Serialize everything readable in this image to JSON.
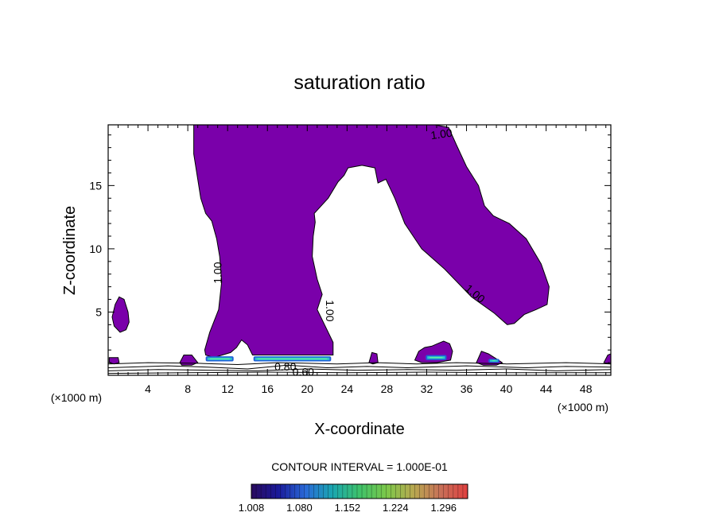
{
  "chart_data": {
    "type": "heatmap",
    "title": "saturation ratio",
    "xlabel": "X-coordinate",
    "ylabel": "Z-coordinate",
    "x_units": "(×1000 m)",
    "z_units": "(×1000 m)",
    "xlim": [
      0,
      50.5
    ],
    "ylim": [
      0,
      19.8
    ],
    "x_ticks": [
      4,
      8,
      12,
      16,
      20,
      24,
      28,
      32,
      36,
      40,
      44,
      48
    ],
    "y_ticks": [
      5,
      10,
      15
    ],
    "contour_interval_label": "CONTOUR INTERVAL = 1.000E-01",
    "contour_labels": [
      {
        "text": "1.00",
        "x": 33.5,
        "z": 19.0,
        "angle": -8
      },
      {
        "text": "1.00",
        "x": 11.1,
        "z": 8.1,
        "angle": -90
      },
      {
        "text": "1.00",
        "x": 22.2,
        "z": 5.1,
        "angle": 90
      },
      {
        "text": "1.00",
        "x": 36.8,
        "z": 6.4,
        "angle": 40
      },
      {
        "text": "0.80",
        "x": 17.8,
        "z": 0.6,
        "angle": 0
      },
      {
        "text": "0.60",
        "x": 19.6,
        "z": 0.2,
        "angle": 0
      }
    ],
    "colorbar": {
      "ticks": [
        "1.008",
        "1.080",
        "1.152",
        "1.224",
        "1.296"
      ],
      "min": 1.008,
      "max": 1.332,
      "stops": [
        "#2a0a5e",
        "#1a1a9a",
        "#2a6ad8",
        "#1aa6b0",
        "#3ec26a",
        "#7cc84a",
        "#b8a850",
        "#c87058",
        "#e04040"
      ]
    },
    "fill_color": "#7a00aa",
    "low_level_colors": [
      "#1e60d8",
      "#30c8c8",
      "#60f0a0"
    ],
    "shaded_regions": [
      {
        "name": "main-plume",
        "level": ">1.00",
        "outline": [
          [
            8.6,
            19.8
          ],
          [
            32.8,
            19.8
          ],
          [
            34.2,
            19.6
          ],
          [
            35.0,
            18.2
          ],
          [
            36.0,
            16.5
          ],
          [
            37.2,
            15.0
          ],
          [
            37.8,
            13.4
          ],
          [
            38.7,
            12.6
          ],
          [
            40.3,
            12.0
          ],
          [
            42.0,
            10.8
          ],
          [
            43.5,
            8.8
          ],
          [
            44.3,
            7.0
          ],
          [
            44.1,
            5.6
          ],
          [
            43.0,
            5.2
          ],
          [
            41.8,
            4.8
          ],
          [
            40.8,
            4.1
          ],
          [
            40.1,
            4.0
          ],
          [
            38.8,
            4.9
          ],
          [
            36.5,
            6.2
          ],
          [
            33.8,
            8.4
          ],
          [
            31.5,
            10.0
          ],
          [
            29.8,
            12.0
          ],
          [
            28.8,
            14.0
          ],
          [
            27.9,
            15.5
          ],
          [
            27.1,
            15.2
          ],
          [
            26.8,
            16.4
          ],
          [
            25.5,
            16.6
          ],
          [
            24.1,
            16.4
          ],
          [
            23.7,
            15.8
          ],
          [
            23.1,
            15.3
          ],
          [
            22.1,
            14.0
          ],
          [
            20.7,
            12.8
          ],
          [
            20.8,
            12.1
          ],
          [
            20.6,
            11.0
          ],
          [
            20.5,
            9.4
          ],
          [
            21.0,
            7.6
          ],
          [
            21.5,
            6.4
          ],
          [
            21.0,
            5.2
          ],
          [
            22.6,
            2.6
          ],
          [
            22.6,
            1.6
          ],
          [
            14.5,
            1.6
          ],
          [
            14.0,
            2.4
          ],
          [
            13.4,
            2.8
          ],
          [
            12.9,
            2.2
          ],
          [
            12.3,
            1.8
          ],
          [
            10.6,
            1.4
          ],
          [
            9.8,
            1.6
          ],
          [
            9.7,
            2.0
          ],
          [
            10.2,
            3.4
          ],
          [
            11.1,
            5.2
          ],
          [
            11.4,
            7.4
          ],
          [
            11.2,
            9.4
          ],
          [
            10.9,
            10.8
          ],
          [
            10.4,
            12.2
          ],
          [
            9.8,
            12.8
          ],
          [
            9.3,
            14.0
          ],
          [
            8.9,
            16.0
          ],
          [
            8.6,
            17.5
          ],
          [
            8.6,
            19.8
          ]
        ]
      },
      {
        "name": "left-blob",
        "level": ">1.00",
        "outline": [
          [
            0.4,
            4.6
          ],
          [
            0.7,
            5.6
          ],
          [
            1.1,
            6.2
          ],
          [
            1.6,
            6.0
          ],
          [
            2.0,
            5.0
          ],
          [
            2.1,
            4.2
          ],
          [
            1.8,
            3.6
          ],
          [
            1.2,
            3.4
          ],
          [
            0.6,
            3.9
          ],
          [
            0.4,
            4.6
          ]
        ]
      },
      {
        "name": "blob-31-35",
        "level": ">1.00",
        "outline": [
          [
            30.8,
            1.2
          ],
          [
            31.2,
            1.9
          ],
          [
            31.8,
            2.2
          ],
          [
            32.5,
            2.3
          ],
          [
            33.1,
            2.5
          ],
          [
            33.7,
            2.7
          ],
          [
            34.3,
            2.5
          ],
          [
            34.6,
            1.9
          ],
          [
            34.4,
            1.2
          ],
          [
            33.0,
            1.0
          ],
          [
            31.5,
            1.0
          ],
          [
            30.8,
            1.2
          ]
        ]
      },
      {
        "name": "blob-37-40",
        "level": ">1.00",
        "outline": [
          [
            37.0,
            1.0
          ],
          [
            37.5,
            1.9
          ],
          [
            38.2,
            1.7
          ],
          [
            39.0,
            1.3
          ],
          [
            39.6,
            1.0
          ],
          [
            39.0,
            0.8
          ],
          [
            37.7,
            0.8
          ],
          [
            37.0,
            1.0
          ]
        ]
      },
      {
        "name": "blob-8",
        "level": ">1.00",
        "outline": [
          [
            7.2,
            1.0
          ],
          [
            7.6,
            1.6
          ],
          [
            8.4,
            1.6
          ],
          [
            9.0,
            1.0
          ],
          [
            8.4,
            0.8
          ],
          [
            7.4,
            0.8
          ],
          [
            7.2,
            1.0
          ]
        ]
      },
      {
        "name": "blob-26",
        "level": ">1.00",
        "outline": [
          [
            26.2,
            1.0
          ],
          [
            26.5,
            1.8
          ],
          [
            27.0,
            1.7
          ],
          [
            27.1,
            1.0
          ],
          [
            26.6,
            0.9
          ],
          [
            26.2,
            1.0
          ]
        ]
      },
      {
        "name": "blob-0",
        "level": ">1.00",
        "outline": [
          [
            0.1,
            1.0
          ],
          [
            0.1,
            1.4
          ],
          [
            1.0,
            1.4
          ],
          [
            1.1,
            1.0
          ],
          [
            0.6,
            0.9
          ],
          [
            0.1,
            1.0
          ]
        ]
      },
      {
        "name": "blob-50",
        "level": ">1.00",
        "outline": [
          [
            49.8,
            1.0
          ],
          [
            50.2,
            1.6
          ],
          [
            50.5,
            1.7
          ],
          [
            50.5,
            0.9
          ],
          [
            49.8,
            1.0
          ]
        ]
      }
    ],
    "low_level_bands": [
      {
        "x0": 9.8,
        "x1": 12.6,
        "z0": 1.1,
        "z1": 1.5
      },
      {
        "x0": 14.6,
        "x1": 22.4,
        "z0": 1.1,
        "z1": 1.5
      },
      {
        "x0": 31.9,
        "x1": 34.0,
        "z0": 1.2,
        "z1": 1.6
      },
      {
        "x0": 38.2,
        "x1": 39.3,
        "z0": 1.0,
        "z1": 1.3
      }
    ],
    "ground_contours": [
      [
        [
          0,
          0.6
        ],
        [
          6,
          0.75
        ],
        [
          10,
          0.65
        ],
        [
          14,
          0.5
        ],
        [
          18,
          0.8
        ],
        [
          22,
          0.6
        ],
        [
          26,
          0.7
        ],
        [
          30,
          0.6
        ],
        [
          36,
          0.75
        ],
        [
          42,
          0.6
        ],
        [
          46,
          0.7
        ],
        [
          50.5,
          0.65
        ]
      ],
      [
        [
          0,
          0.35
        ],
        [
          5,
          0.45
        ],
        [
          10,
          0.4
        ],
        [
          15,
          0.35
        ],
        [
          20,
          0.5
        ],
        [
          25,
          0.4
        ],
        [
          30,
          0.45
        ],
        [
          35,
          0.4
        ],
        [
          40,
          0.5
        ],
        [
          45,
          0.35
        ],
        [
          50.5,
          0.45
        ]
      ],
      [
        [
          0,
          0.9
        ],
        [
          4,
          1.0
        ],
        [
          9,
          0.95
        ],
        [
          13,
          0.85
        ],
        [
          17,
          1.0
        ],
        [
          23,
          0.9
        ],
        [
          27,
          1.0
        ],
        [
          31,
          0.9
        ],
        [
          35,
          1.0
        ],
        [
          40,
          0.9
        ],
        [
          46,
          1.0
        ],
        [
          50.5,
          0.9
        ]
      ],
      [
        [
          0,
          0.15
        ],
        [
          8,
          0.2
        ],
        [
          16,
          0.25
        ],
        [
          24,
          0.2
        ],
        [
          32,
          0.25
        ],
        [
          40,
          0.2
        ],
        [
          50.5,
          0.2
        ]
      ]
    ]
  }
}
